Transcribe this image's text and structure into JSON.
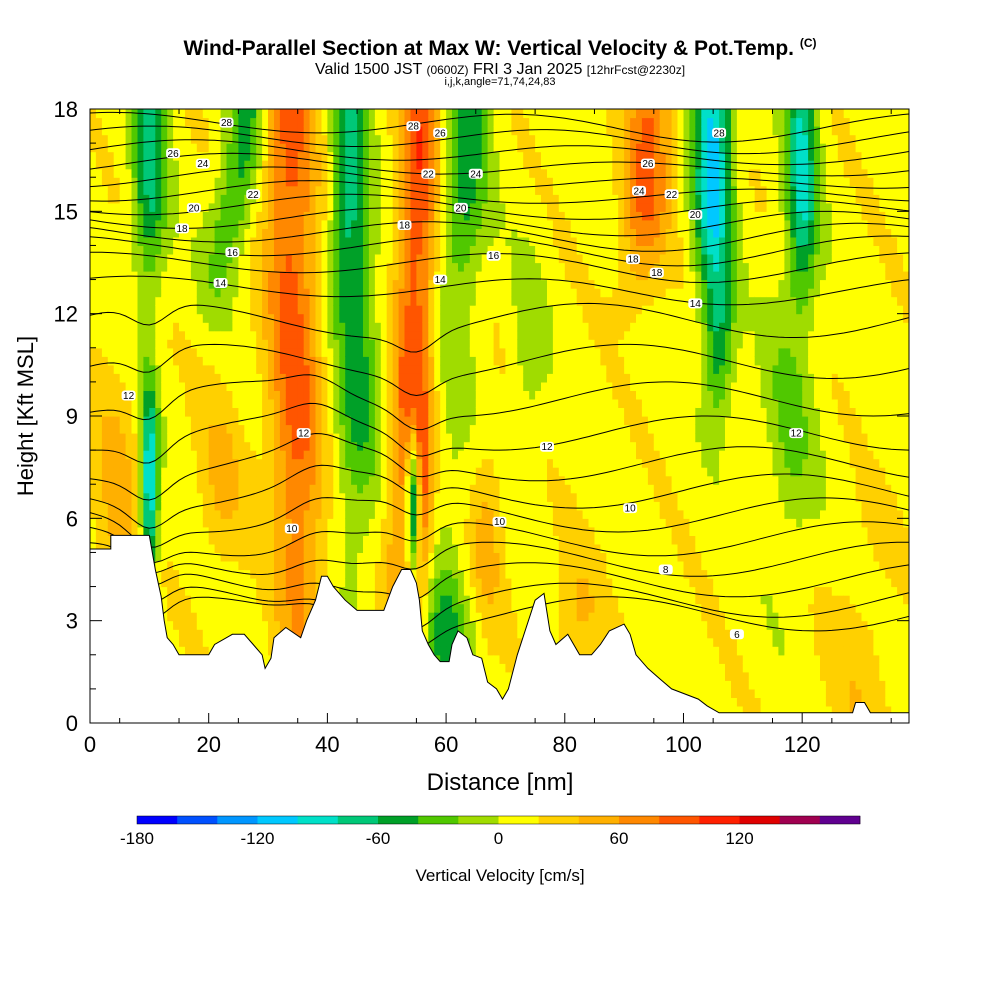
{
  "chart_data": {
    "type": "heatmap",
    "title": "Wind-Parallel Section at Max W: Vertical Velocity & Pot.Temp.",
    "title_mark": "(C)",
    "subtitle_main_a": "Valid 1500 JST",
    "subtitle_small_a": "(0600Z)",
    "subtitle_main_b": "FRI 3 Jan 2025",
    "subtitle_small_b": "[12hrFcst@2230z]",
    "subtitle_2": "i,j,k,angle=71,74,24,83",
    "xlabel": "Distance [nm]",
    "ylabel": "Height [Kft MSL]",
    "xlim": [
      0,
      138
    ],
    "ylim": [
      0,
      18
    ],
    "x_ticks": [
      0,
      20,
      40,
      60,
      80,
      100,
      120
    ],
    "y_ticks": [
      0,
      3,
      6,
      9,
      12,
      15,
      18
    ],
    "colorbar": {
      "label": "Vertical Velocity [cm/s]",
      "min": -180,
      "step": 20,
      "tick_values": [
        -180,
        -120,
        -60,
        0,
        60,
        120
      ],
      "colors": [
        "#0000ff",
        "#0050ff",
        "#0096ff",
        "#00c8ff",
        "#00e0c8",
        "#00c878",
        "#00a028",
        "#50c800",
        "#a0dc00",
        "#ffff00",
        "#ffd000",
        "#ffb000",
        "#ff8800",
        "#ff5500",
        "#ff2000",
        "#e00000",
        "#a00050",
        "#600090"
      ]
    },
    "potential_temperature_contours_C": [
      6,
      8,
      10,
      12,
      14,
      16,
      18,
      20,
      22,
      24,
      26,
      28
    ],
    "contour_labels": [
      {
        "text": "12",
        "x": 6.5,
        "y": 9.6
      },
      {
        "text": "12",
        "x": 36,
        "y": 8.5
      },
      {
        "text": "12",
        "x": 77,
        "y": 8.1
      },
      {
        "text": "12",
        "x": 119,
        "y": 8.5
      },
      {
        "text": "10",
        "x": 34,
        "y": 5.7
      },
      {
        "text": "10",
        "x": 69,
        "y": 5.9
      },
      {
        "text": "10",
        "x": 91,
        "y": 6.3
      },
      {
        "text": "8",
        "x": 97,
        "y": 4.5
      },
      {
        "text": "6",
        "x": 109,
        "y": 2.6
      },
      {
        "text": "14",
        "x": 22,
        "y": 12.9
      },
      {
        "text": "14",
        "x": 59,
        "y": 13
      },
      {
        "text": "14",
        "x": 102,
        "y": 12.3
      },
      {
        "text": "16",
        "x": 24,
        "y": 13.8
      },
      {
        "text": "16",
        "x": 68,
        "y": 13.7
      },
      {
        "text": "18",
        "x": 15.5,
        "y": 14.5
      },
      {
        "text": "18",
        "x": 53,
        "y": 14.6
      },
      {
        "text": "18",
        "x": 91.5,
        "y": 13.6
      },
      {
        "text": "18",
        "x": 95.5,
        "y": 13.2
      },
      {
        "text": "20",
        "x": 17.5,
        "y": 15.1
      },
      {
        "text": "20",
        "x": 62.5,
        "y": 15.1
      },
      {
        "text": "20",
        "x": 102,
        "y": 14.9
      },
      {
        "text": "22",
        "x": 27.5,
        "y": 15.5
      },
      {
        "text": "22",
        "x": 57,
        "y": 16.1
      },
      {
        "text": "22",
        "x": 98,
        "y": 15.5
      },
      {
        "text": "24",
        "x": 19,
        "y": 16.4
      },
      {
        "text": "24",
        "x": 65,
        "y": 16.1
      },
      {
        "text": "24",
        "x": 92.5,
        "y": 15.6
      },
      {
        "text": "26",
        "x": 14,
        "y": 16.7
      },
      {
        "text": "26",
        "x": 59,
        "y": 17.3
      },
      {
        "text": "26",
        "x": 94,
        "y": 16.4
      },
      {
        "text": "28",
        "x": 23,
        "y": 17.6
      },
      {
        "text": "28",
        "x": 54.5,
        "y": 17.5
      },
      {
        "text": "28",
        "x": 106,
        "y": 17.3
      }
    ],
    "terrain_top_kft": [
      [
        0,
        5.1
      ],
      [
        3.5,
        5.1
      ],
      [
        3.5,
        5.5
      ],
      [
        10,
        5.5
      ],
      [
        11,
        4.5
      ],
      [
        12,
        3.7
      ],
      [
        12.5,
        3.0
      ],
      [
        13,
        2.5
      ],
      [
        14,
        2.3
      ],
      [
        15,
        2.0
      ],
      [
        20,
        2.0
      ],
      [
        21,
        2.3
      ],
      [
        24,
        2.6
      ],
      [
        26,
        2.6
      ],
      [
        27.5,
        2.3
      ],
      [
        29,
        2.0
      ],
      [
        29.5,
        1.6
      ],
      [
        30.5,
        1.9
      ],
      [
        31,
        2.5
      ],
      [
        33,
        2.8
      ],
      [
        35.5,
        2.5
      ],
      [
        36.5,
        3.0
      ],
      [
        38,
        3.6
      ],
      [
        39,
        4.3
      ],
      [
        40,
        4.3
      ],
      [
        41,
        4.0
      ],
      [
        43,
        3.6
      ],
      [
        45,
        3.3
      ],
      [
        49.5,
        3.3
      ],
      [
        51,
        4.0
      ],
      [
        52.5,
        4.5
      ],
      [
        54,
        4.5
      ],
      [
        55,
        4.1
      ],
      [
        55.5,
        3.6
      ],
      [
        56,
        2.7
      ],
      [
        57,
        2.3
      ],
      [
        58,
        2.0
      ],
      [
        59,
        1.8
      ],
      [
        60.5,
        1.8
      ],
      [
        61,
        2.3
      ],
      [
        62,
        2.7
      ],
      [
        63.5,
        2.5
      ],
      [
        64.5,
        2.0
      ],
      [
        66,
        1.9
      ],
      [
        67,
        1.2
      ],
      [
        68.5,
        1.0
      ],
      [
        69.5,
        0.7
      ],
      [
        70.5,
        1.0
      ],
      [
        72,
        2.0
      ],
      [
        75,
        3.6
      ],
      [
        76.5,
        3.8
      ],
      [
        77.5,
        2.7
      ],
      [
        78.5,
        2.3
      ],
      [
        80.5,
        2.6
      ],
      [
        81.5,
        2.3
      ],
      [
        82.5,
        2.0
      ],
      [
        84.5,
        2.0
      ],
      [
        86,
        2.3
      ],
      [
        87.5,
        2.7
      ],
      [
        90,
        2.9
      ],
      [
        91,
        2.6
      ],
      [
        92,
        2.0
      ],
      [
        94,
        1.6
      ],
      [
        96,
        1.3
      ],
      [
        98,
        1.0
      ],
      [
        102.5,
        0.7
      ],
      [
        104,
        0.5
      ],
      [
        106,
        0.3
      ],
      [
        128.5,
        0.3
      ],
      [
        129,
        0.6
      ],
      [
        130.5,
        0.6
      ],
      [
        131.5,
        0.3
      ],
      [
        138,
        0.3
      ]
    ],
    "shading_range_cm_s": [
      -150,
      120
    ]
  }
}
